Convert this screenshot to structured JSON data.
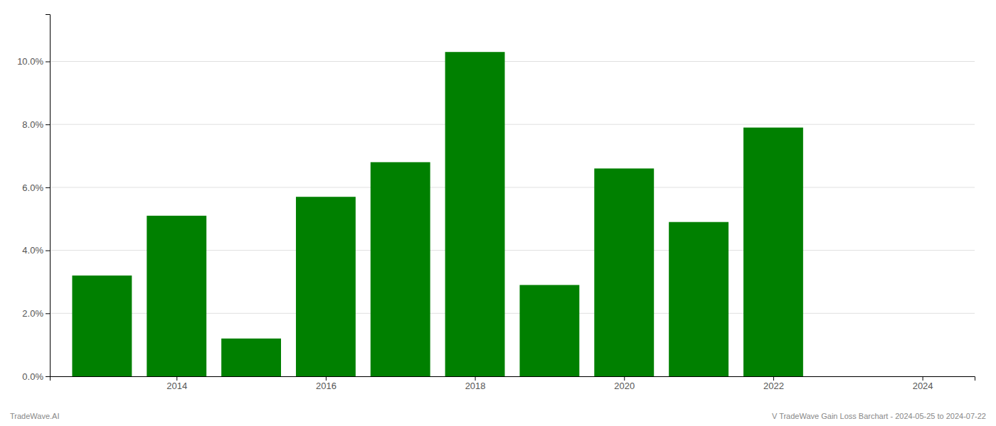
{
  "chart_data": {
    "type": "bar",
    "x": [
      2013,
      2014,
      2015,
      2016,
      2017,
      2018,
      2019,
      2020,
      2021,
      2022,
      2023
    ],
    "values": [
      0.032,
      0.051,
      0.012,
      0.057,
      0.068,
      0.103,
      0.029,
      0.066,
      0.049,
      0.079,
      0.0
    ],
    "color": "#008000",
    "xlim": [
      2012.3,
      2024.7
    ],
    "xticks": [
      2014,
      2016,
      2018,
      2020,
      2022,
      2024
    ],
    "ylim": [
      0,
      0.115
    ],
    "yticks": [
      {
        "value": 0.0,
        "label": "0.0%"
      },
      {
        "value": 0.02,
        "label": "2.0%"
      },
      {
        "value": 0.04,
        "label": "4.0%"
      },
      {
        "value": 0.06,
        "label": "6.0%"
      },
      {
        "value": 0.08,
        "label": "8.0%"
      },
      {
        "value": 0.1,
        "label": "10.0%"
      }
    ],
    "grid": true,
    "annotations": [
      "TradeWave.AI",
      "V TradeWave Gain Loss Barchart - 2024-05-25 to 2024-07-22"
    ]
  }
}
